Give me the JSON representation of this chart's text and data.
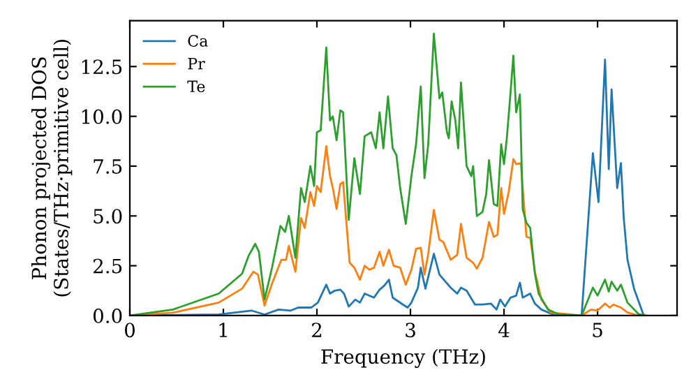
{
  "chart_data": {
    "type": "line",
    "xlabel": "Frequency (THz)",
    "ylabel": "Phonon projected DOS\n(States/THz·primitive cell)",
    "xlim": [
      0,
      5.85
    ],
    "ylim": [
      0,
      14.8
    ],
    "xticks": [
      0,
      1,
      2,
      3,
      4,
      5
    ],
    "yticks": [
      {
        "value": 0,
        "label": "0.0"
      },
      2.5,
      {
        "value": 5,
        "label": "5.0"
      },
      7.5,
      {
        "value": 10,
        "label": "10.0"
      },
      12.5
    ],
    "legend": "top left",
    "grid": false,
    "marker": "none",
    "line_style": "solid",
    "series": [
      {
        "name": "Ca",
        "color": "#1f77b4",
        "x": [
          0,
          0.95,
          1.3,
          1.44,
          1.59,
          1.72,
          1.8,
          1.94,
          2.01,
          2.1,
          2.14,
          2.19,
          2.25,
          2.29,
          2.34,
          2.41,
          2.46,
          2.51,
          2.61,
          2.67,
          2.72,
          2.77,
          2.81,
          2.92,
          2.97,
          3.01,
          3.08,
          3.11,
          3.16,
          3.25,
          3.31,
          3.43,
          3.5,
          3.54,
          3.6,
          3.69,
          3.77,
          3.86,
          3.92,
          3.96,
          4.01,
          4.07,
          4.13,
          4.17,
          4.2,
          4.28,
          4.33,
          4.4,
          4.54,
          4.83,
          4.95,
          5.01,
          5.08,
          5.12,
          5.15,
          5.21,
          5.25,
          5.28,
          5.32,
          5.39,
          5.49,
          5.51
        ],
        "values": [
          0,
          0.05,
          0.25,
          0.05,
          0.3,
          0.25,
          0.4,
          0.4,
          0.65,
          1.55,
          1.1,
          1.25,
          1.3,
          1.1,
          0.45,
          0.8,
          0.65,
          1.1,
          0.9,
          1.3,
          1.5,
          1.8,
          0.9,
          0.55,
          0.4,
          0.65,
          1.4,
          2.4,
          1.35,
          3.1,
          2.05,
          1.4,
          1.1,
          1.4,
          1.25,
          0.55,
          0.55,
          0.6,
          0.3,
          0.8,
          0.45,
          0.9,
          1.0,
          1.65,
          0.9,
          1.1,
          0.6,
          0.3,
          0.02,
          0,
          8.15,
          5.7,
          12.85,
          7.35,
          11.35,
          6.4,
          7.65,
          4.9,
          2.8,
          1.35,
          0.05,
          0
        ]
      },
      {
        "name": "Pr",
        "color": "#ff7f0e",
        "x": [
          0,
          0.46,
          0.95,
          1.2,
          1.32,
          1.37,
          1.44,
          1.52,
          1.62,
          1.67,
          1.7,
          1.77,
          1.83,
          1.87,
          1.93,
          1.97,
          2.0,
          2.04,
          2.1,
          2.14,
          2.17,
          2.21,
          2.25,
          2.28,
          2.35,
          2.4,
          2.46,
          2.51,
          2.56,
          2.61,
          2.67,
          2.71,
          2.77,
          2.82,
          2.89,
          2.95,
          3.01,
          3.06,
          3.11,
          3.15,
          3.19,
          3.25,
          3.31,
          3.35,
          3.43,
          3.5,
          3.54,
          3.6,
          3.67,
          3.71,
          3.77,
          3.84,
          3.89,
          3.93,
          3.97,
          4.0,
          4.05,
          4.1,
          4.13,
          4.18,
          4.24,
          4.28,
          4.33,
          4.4,
          4.5,
          4.83,
          4.93,
          5.0,
          5.08,
          5.13,
          5.17,
          5.25,
          5.32,
          5.44
        ],
        "values": [
          0,
          0.14,
          0.65,
          1.35,
          2.2,
          2.05,
          0.5,
          1.6,
          2.8,
          2.8,
          3.5,
          2.2,
          4.9,
          4.4,
          6.2,
          5.5,
          6.5,
          6.2,
          8.5,
          7.0,
          6.4,
          5.35,
          6.6,
          6.7,
          2.65,
          2.4,
          1.8,
          2.5,
          2.3,
          2.4,
          3.2,
          2.5,
          3.3,
          2.5,
          2.4,
          1.55,
          2.3,
          3.35,
          3.4,
          2.05,
          3.1,
          5.3,
          3.8,
          3.7,
          2.8,
          3.05,
          4.6,
          2.9,
          2.65,
          2.35,
          2.9,
          4.7,
          3.95,
          4.05,
          6.4,
          5.1,
          6.2,
          7.85,
          7.6,
          7.65,
          3.95,
          3.9,
          2.2,
          0.8,
          0.15,
          0,
          0.3,
          0.25,
          0.6,
          0.4,
          0.55,
          0.4,
          0.15,
          0
        ]
      },
      {
        "name": "Te",
        "color": "#2ca02c",
        "x": [
          0,
          0.46,
          0.95,
          1.2,
          1.27,
          1.34,
          1.38,
          1.44,
          1.52,
          1.61,
          1.66,
          1.7,
          1.77,
          1.83,
          1.87,
          1.93,
          1.97,
          2.0,
          2.04,
          2.1,
          2.14,
          2.17,
          2.21,
          2.25,
          2.28,
          2.34,
          2.4,
          2.46,
          2.51,
          2.58,
          2.63,
          2.67,
          2.71,
          2.76,
          2.81,
          2.85,
          2.89,
          2.95,
          3.01,
          3.06,
          3.11,
          3.15,
          3.19,
          3.25,
          3.31,
          3.34,
          3.39,
          3.41,
          3.44,
          3.48,
          3.51,
          3.54,
          3.6,
          3.65,
          3.67,
          3.71,
          3.77,
          3.81,
          3.84,
          3.89,
          3.93,
          3.97,
          4.0,
          4.03,
          4.07,
          4.1,
          4.13,
          4.17,
          4.2,
          4.24,
          4.28,
          4.33,
          4.37,
          4.47,
          4.59,
          4.83,
          4.95,
          5.0,
          5.08,
          5.12,
          5.15,
          5.21,
          5.25,
          5.32,
          5.44,
          5.51
        ],
        "values": [
          0,
          0.3,
          1.1,
          2.1,
          3.0,
          3.6,
          3.2,
          0.8,
          2.4,
          4.5,
          4.2,
          5.0,
          2.9,
          6.4,
          5.7,
          7.5,
          6.5,
          9.2,
          9.3,
          13.45,
          9.8,
          10.0,
          8.8,
          10.3,
          10.2,
          4.8,
          7.9,
          6.1,
          9.0,
          9.2,
          8.4,
          10.2,
          8.4,
          11.0,
          8.4,
          8.05,
          6.4,
          4.6,
          7.0,
          8.6,
          11.5,
          6.9,
          8.6,
          14.15,
          10.9,
          11.2,
          9.2,
          8.9,
          10.75,
          9.8,
          8.4,
          11.7,
          7.5,
          7.0,
          7.5,
          5.0,
          5.2,
          6.1,
          7.8,
          5.6,
          5.5,
          8.6,
          7.6,
          8.9,
          11.2,
          13.05,
          10.2,
          11.1,
          5.35,
          4.65,
          4.4,
          2.1,
          1.1,
          0.3,
          0.05,
          0,
          1.4,
          1.0,
          1.8,
          1.2,
          1.7,
          1.25,
          1.55,
          0.65,
          0.07,
          0
        ]
      }
    ]
  }
}
